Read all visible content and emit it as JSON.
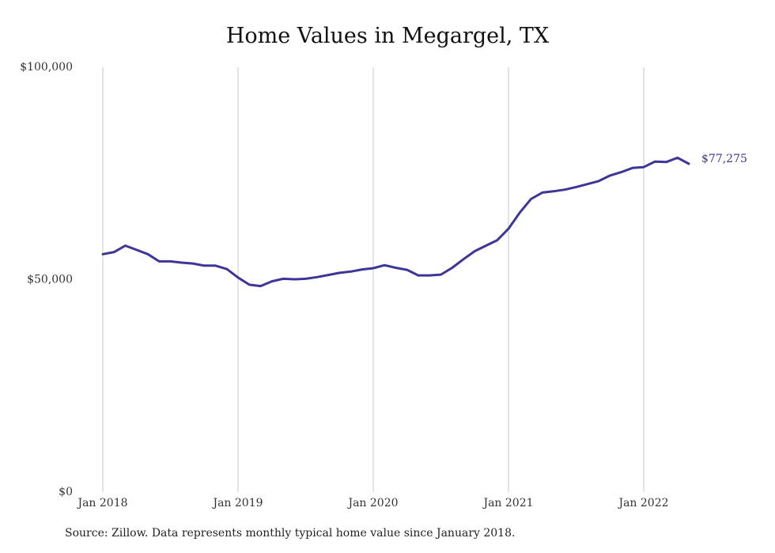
{
  "chart_data": {
    "type": "line",
    "title": "Home Values in Megargel, TX",
    "xlabel": "",
    "ylabel": "",
    "ylim": [
      0,
      100000
    ],
    "y_ticks": [
      {
        "value": 0,
        "label": "$0"
      },
      {
        "value": 50000,
        "label": "$50,000"
      },
      {
        "value": 100000,
        "label": "$100,000"
      }
    ],
    "x_ticks": [
      {
        "value": 0,
        "label": "Jan 2018"
      },
      {
        "value": 12,
        "label": "Jan 2019"
      },
      {
        "value": 24,
        "label": "Jan 2020"
      },
      {
        "value": 36,
        "label": "Jan 2021"
      },
      {
        "value": 48,
        "label": "Jan 2022"
      }
    ],
    "x_unit": "months since Jan 2018",
    "grid": "vertical at x ticks",
    "colors": {
      "line": "#3d3597",
      "grid": "#c8c8c8"
    },
    "series": [
      {
        "name": "",
        "values": [
          56000,
          56500,
          58000,
          57000,
          56000,
          54300,
          54300,
          54000,
          53800,
          53300,
          53300,
          52500,
          50500,
          48800,
          48500,
          49600,
          50200,
          50100,
          50200,
          50600,
          51100,
          51600,
          51900,
          52400,
          52700,
          53400,
          52800,
          52300,
          51000,
          51000,
          51200,
          52800,
          54800,
          56700,
          58000,
          59300,
          62000,
          65800,
          69000,
          70500,
          70800,
          71200,
          71800,
          72500,
          73200,
          74500,
          75300,
          76300,
          76500,
          77800,
          77700,
          78700,
          77275
        ]
      }
    ],
    "end_label": "$77,275"
  },
  "source": "Source: Zillow. Data represents monthly typical home value since January 2018."
}
